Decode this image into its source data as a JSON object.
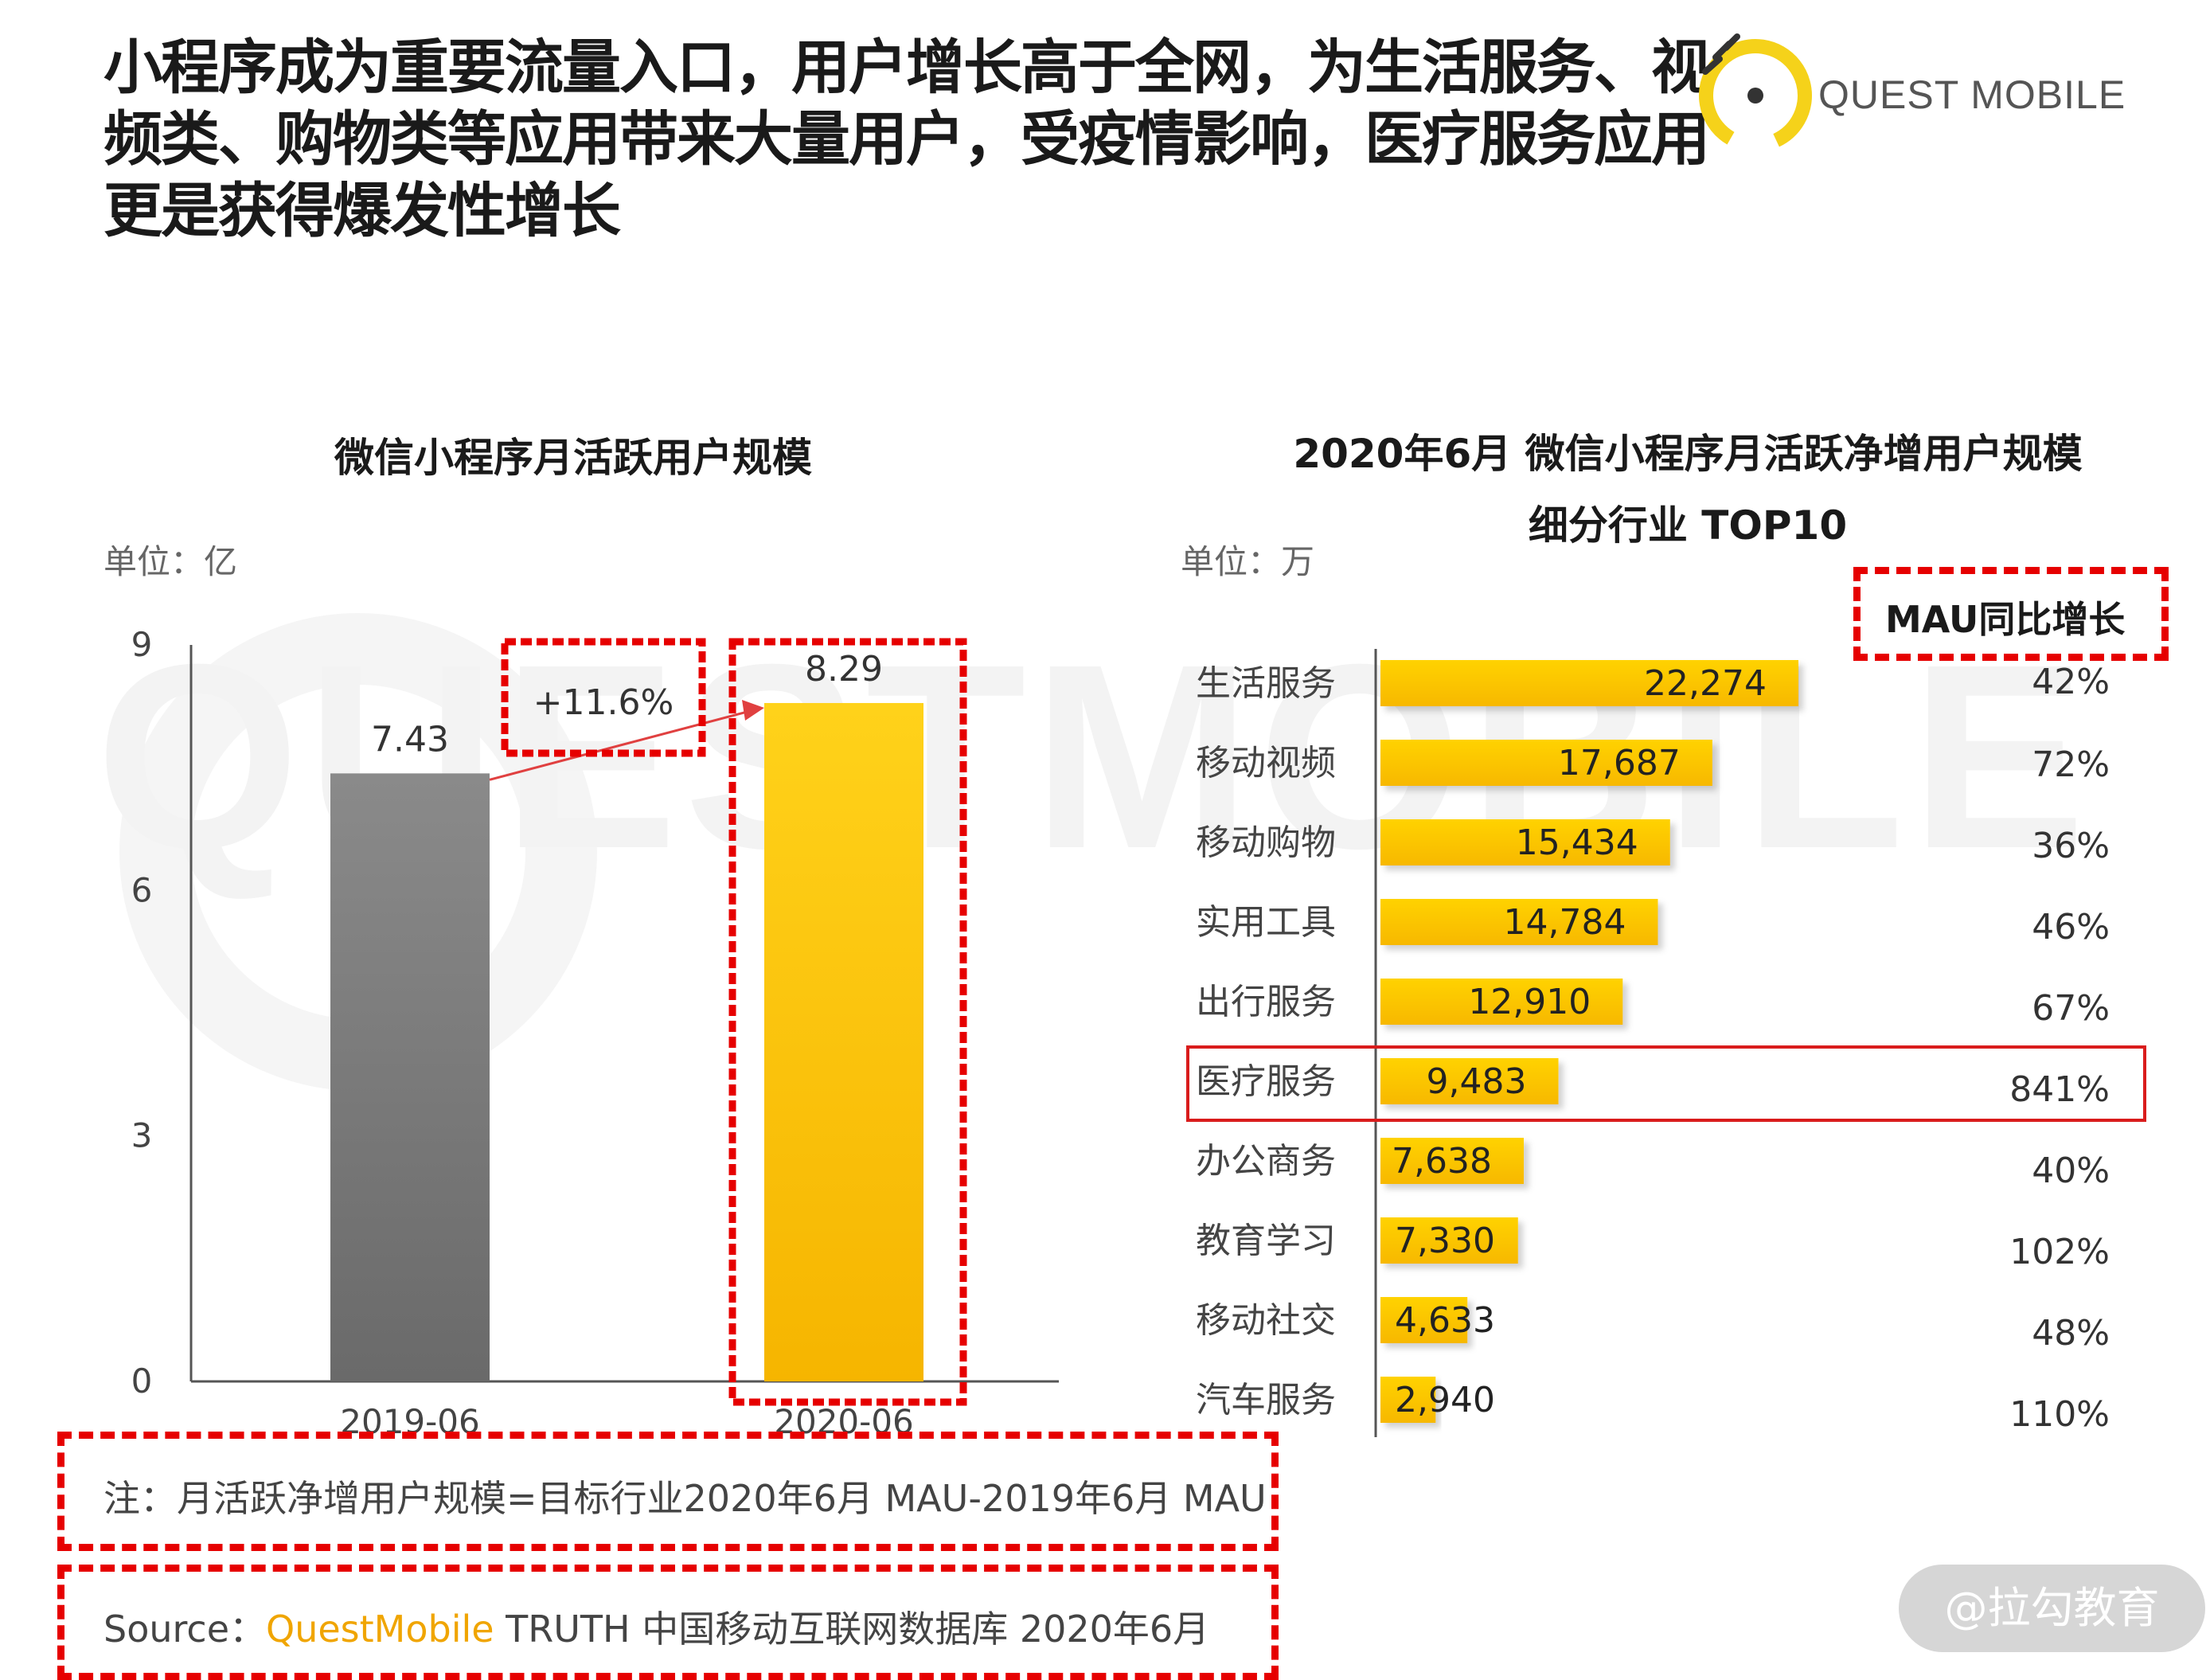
{
  "headline": "小程序成为重要流量入口，用户增长高于全网，为生活服务、视频类、购物类等应用带来大量用户，受疫情影响，医疗服务应用更是获得爆发性增长",
  "logo": {
    "text": "QUEST MOBILE",
    "accent_color": "#f5d21a"
  },
  "watermark": "QUESTMOBILE",
  "chart_data": [
    {
      "type": "bar",
      "title": "微信小程序月活跃用户规模",
      "unit_label": "单位：亿",
      "categories": [
        "2019-06",
        "2020-06"
      ],
      "values": [
        7.43,
        8.29
      ],
      "value_labels": [
        "7.43",
        "8.29"
      ],
      "ylim": [
        0,
        9
      ],
      "yticks": [
        "0",
        "3",
        "6",
        "9"
      ],
      "growth_label": "+11.6%",
      "colors": [
        "#8a8a8a",
        "#ffc800"
      ]
    },
    {
      "type": "bar",
      "orientation": "horizontal",
      "title": "2020年6月 微信小程序月活跃净增用户规模",
      "title_line2": "细分行业 TOP10",
      "unit_label": "单位：万",
      "growth_header": "MAU同比增长",
      "categories": [
        "生活服务",
        "移动视频",
        "移动购物",
        "实用工具",
        "出行服务",
        "医疗服务",
        "办公商务",
        "教育学习",
        "移动社交",
        "汽车服务"
      ],
      "values": [
        22274,
        17687,
        15434,
        14784,
        12910,
        9483,
        7638,
        7330,
        4633,
        2940
      ],
      "value_labels": [
        "22,274",
        "17,687",
        "15,434",
        "14,784",
        "12,910",
        "9,483",
        "7,638",
        "7,330",
        "4,633",
        "2,940"
      ],
      "growth": [
        "42%",
        "72%",
        "36%",
        "46%",
        "67%",
        "841%",
        "40%",
        "102%",
        "48%",
        "110%"
      ],
      "highlight": "医疗服务",
      "bar_color": "#ffc800"
    }
  ],
  "note": "注：月活跃净增用户规模=目标行业2020年6月 MAU-2019年6月 MAU",
  "source": {
    "prefix": "Source：",
    "brand": "QuestMobile",
    "rest": " TRUTH 中国移动互联网数据库 2020年6月"
  },
  "badge": "@拉勾教育"
}
